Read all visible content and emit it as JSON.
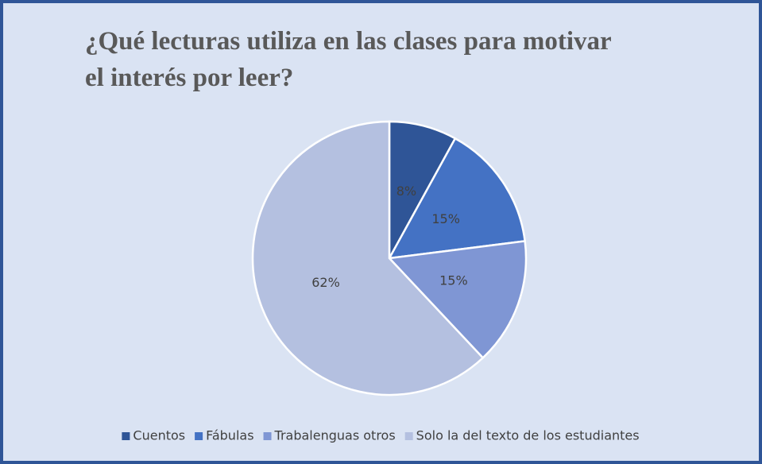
{
  "chart_data": {
    "type": "pie",
    "title": [
      "¿Qué lecturas utiliza en las clases para motivar",
      "el interés por leer?"
    ],
    "categories": [
      "Cuentos",
      "Fábulas",
      "Trabalenguas otros",
      "Solo la del texto de los estudiantes"
    ],
    "values": [
      8,
      15,
      15,
      62
    ],
    "value_labels": [
      "8%",
      "15%",
      "15%",
      "62%"
    ],
    "colors": [
      "#2f5597",
      "#4472c4",
      "#7f96d4",
      "#b4c0e0"
    ],
    "legend": "bottom"
  }
}
